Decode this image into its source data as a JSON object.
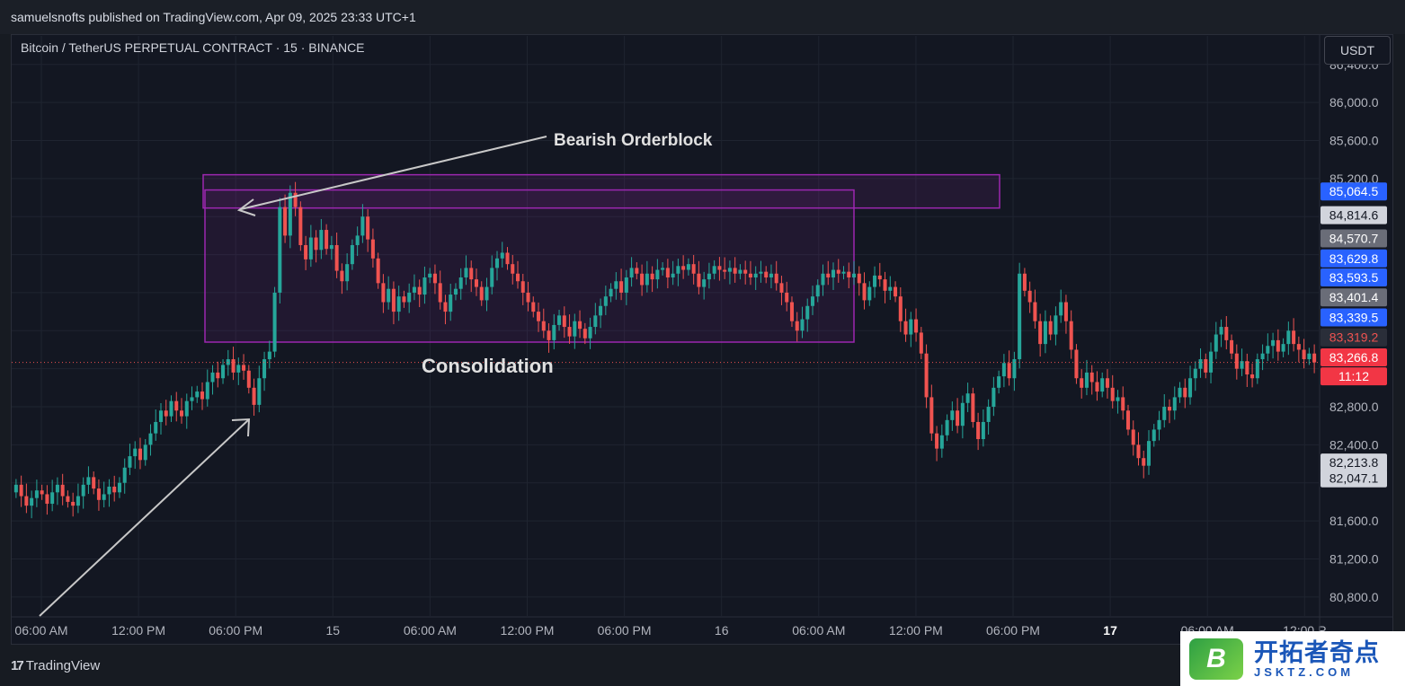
{
  "header": {
    "publisher_line": "samuelsnofts published on TradingView.com, Apr 09, 2025 23:33 UTC+1"
  },
  "symbol": {
    "title": "Bitcoin / TetherUS PERPETUAL CONTRACT · 15 · BINANCE"
  },
  "currency_button": "USDT",
  "footer": {
    "brand": "TradingView",
    "brand_mark": "17"
  },
  "watermark": {
    "cn": "开拓者奇点",
    "en": "JSKTZ.COM",
    "badge": "B"
  },
  "colors": {
    "up": "#26a69a",
    "down": "#ef5350",
    "box": "#9c27b0",
    "bg": "#131722",
    "grid": "#1f2430"
  },
  "chart_data": {
    "type": "candlestick",
    "y_ticks": [
      80800,
      81200,
      81600,
      82000,
      82400,
      82800,
      83200,
      83600,
      84000,
      84400,
      84800,
      85200,
      85600,
      86000,
      86400
    ],
    "y_tick_labels": [
      "80,800.0",
      "81,200.0",
      "81,600.0",
      "",
      "82,400.0",
      "82,800.0",
      "",
      "",
      "",
      "",
      "",
      "85,200.0",
      "85,600.0",
      "86,000.0",
      "86,400.0"
    ],
    "ylim": [
      80600,
      86700
    ],
    "x_labels": [
      {
        "label": "06:00 AM",
        "bold": false
      },
      {
        "label": "12:00 PM",
        "bold": false
      },
      {
        "label": "06:00 PM",
        "bold": false
      },
      {
        "label": "15",
        "bold": false
      },
      {
        "label": "06:00 AM",
        "bold": false
      },
      {
        "label": "12:00 PM",
        "bold": false
      },
      {
        "label": "06:00 PM",
        "bold": false
      },
      {
        "label": "16",
        "bold": false
      },
      {
        "label": "06:00 AM",
        "bold": false
      },
      {
        "label": "12:00 PM",
        "bold": false
      },
      {
        "label": "06:00 PM",
        "bold": false
      },
      {
        "label": "17",
        "bold": true
      },
      {
        "label": "06:00 AM",
        "bold": false
      },
      {
        "label": "12:00 P",
        "bold": false
      }
    ],
    "price_tags": [
      {
        "value": "85,064.5",
        "price": 85064.5,
        "color": "#2962ff",
        "text_color": "#ffffff"
      },
      {
        "value": "84,814.6",
        "price": 84814.6,
        "color": "#d1d4dc",
        "text_color": "#131722"
      },
      {
        "value": "84,570.7",
        "price": 84570.7,
        "color": "#6a6d78",
        "text_color": "#ffffff"
      },
      {
        "value": "83,629.8",
        "price": 84360,
        "color": "#2962ff",
        "text_color": "#ffffff"
      },
      {
        "value": "83,593.5",
        "price": 84160,
        "color": "#2962ff",
        "text_color": "#ffffff"
      },
      {
        "value": "83,401.4",
        "price": 83950,
        "color": "#6a6d78",
        "text_color": "#ffffff"
      },
      {
        "value": "83,339.5",
        "price": 83740,
        "color": "#2962ff",
        "text_color": "#ffffff"
      },
      {
        "value": "83,319.2",
        "price": 83530,
        "color": "#2a2e39",
        "text_color": "#ef5350"
      },
      {
        "value": "83,266.8",
        "price": 83320,
        "color": "#f23645",
        "text_color": "#ffffff"
      },
      {
        "value": "11:12",
        "price": 83120,
        "color": "#f23645",
        "text_color": "#ffffff"
      },
      {
        "value": "82,213.8",
        "price": 82213.8,
        "color": "#d1d4dc",
        "text_color": "#131722"
      },
      {
        "value": "82,047.1",
        "price": 82047.1,
        "color": "#d1d4dc",
        "text_color": "#131722"
      }
    ],
    "current_price": 83266.8,
    "annotations": [
      {
        "text": "Bearish Orderblock"
      },
      {
        "text": "Consolidation"
      }
    ],
    "orderblock": {
      "top": 85240,
      "bottom": 84890
    },
    "consolidation": {
      "top": 85080,
      "bottom": 83480
    },
    "candles": [
      [
        81900,
        81980
      ],
      [
        81980,
        81860
      ],
      [
        81860,
        81760
      ],
      [
        81760,
        81840
      ],
      [
        81840,
        81920
      ],
      [
        81920,
        81880
      ],
      [
        81880,
        81780
      ],
      [
        81780,
        81900
      ],
      [
        81900,
        81980
      ],
      [
        81980,
        81860
      ],
      [
        81860,
        81800
      ],
      [
        81800,
        81760
      ],
      [
        81760,
        81860
      ],
      [
        81860,
        81980
      ],
      [
        81980,
        82060
      ],
      [
        82060,
        81940
      ],
      [
        81940,
        81820
      ],
      [
        81820,
        81880
      ],
      [
        81880,
        81960
      ],
      [
        81960,
        81900
      ],
      [
        81900,
        82000
      ],
      [
        82000,
        82160
      ],
      [
        82160,
        82280
      ],
      [
        82280,
        82360
      ],
      [
        82360,
        82240
      ],
      [
        82240,
        82400
      ],
      [
        82400,
        82520
      ],
      [
        82520,
        82640
      ],
      [
        82640,
        82760
      ],
      [
        82760,
        82700
      ],
      [
        82700,
        82860
      ],
      [
        82860,
        82760
      ],
      [
        82760,
        82700
      ],
      [
        82700,
        82860
      ],
      [
        82860,
        82900
      ],
      [
        82900,
        82960
      ],
      [
        82960,
        82880
      ],
      [
        82880,
        83060
      ],
      [
        83060,
        83160
      ],
      [
        83160,
        83100
      ],
      [
        83100,
        83240
      ],
      [
        83240,
        83300
      ],
      [
        83300,
        83160
      ],
      [
        83160,
        83240
      ],
      [
        83240,
        83180
      ],
      [
        83180,
        83000
      ],
      [
        83000,
        82820
      ],
      [
        82820,
        83100
      ],
      [
        83100,
        83300
      ],
      [
        83300,
        83380
      ],
      [
        83380,
        84000
      ],
      [
        84000,
        84900
      ],
      [
        84900,
        84600
      ],
      [
        84600,
        85050
      ],
      [
        85050,
        84900
      ],
      [
        84900,
        84500
      ],
      [
        84500,
        84350
      ],
      [
        84350,
        84580
      ],
      [
        84580,
        84450
      ],
      [
        84450,
        84660
      ],
      [
        84660,
        84460
      ],
      [
        84460,
        84500
      ],
      [
        84500,
        84230
      ],
      [
        84230,
        84120
      ],
      [
        84120,
        84300
      ],
      [
        84300,
        84500
      ],
      [
        84500,
        84600
      ],
      [
        84600,
        84800
      ],
      [
        84800,
        84560
      ],
      [
        84560,
        84360
      ],
      [
        84360,
        84100
      ],
      [
        84100,
        83900
      ],
      [
        83900,
        84040
      ],
      [
        84040,
        83800
      ],
      [
        83800,
        83960
      ],
      [
        83960,
        83900
      ],
      [
        83900,
        84000
      ],
      [
        84000,
        84060
      ],
      [
        84060,
        83980
      ],
      [
        83980,
        84160
      ],
      [
        84160,
        84200
      ],
      [
        84200,
        84100
      ],
      [
        84100,
        83900
      ],
      [
        83900,
        83800
      ],
      [
        83800,
        83980
      ],
      [
        83980,
        84040
      ],
      [
        84040,
        84160
      ],
      [
        84160,
        84260
      ],
      [
        84260,
        84140
      ],
      [
        84140,
        84060
      ],
      [
        84060,
        83920
      ],
      [
        83920,
        84060
      ],
      [
        84060,
        84260
      ],
      [
        84260,
        84360
      ],
      [
        84360,
        84420
      ],
      [
        84420,
        84300
      ],
      [
        84300,
        84200
      ],
      [
        84200,
        84120
      ],
      [
        84120,
        84000
      ],
      [
        84000,
        83900
      ],
      [
        83900,
        83800
      ],
      [
        83800,
        83700
      ],
      [
        83700,
        83600
      ],
      [
        83600,
        83500
      ],
      [
        83500,
        83660
      ],
      [
        83660,
        83760
      ],
      [
        83760,
        83640
      ],
      [
        83640,
        83540
      ],
      [
        83540,
        83700
      ],
      [
        83700,
        83620
      ],
      [
        83620,
        83520
      ],
      [
        83520,
        83640
      ],
      [
        83640,
        83760
      ],
      [
        83760,
        83860
      ],
      [
        83860,
        83960
      ],
      [
        83960,
        84040
      ],
      [
        84040,
        84120
      ],
      [
        84120,
        84000
      ],
      [
        84000,
        84160
      ],
      [
        84160,
        84260
      ],
      [
        84260,
        84200
      ],
      [
        84200,
        84080
      ],
      [
        84080,
        84200
      ],
      [
        84200,
        84140
      ],
      [
        84140,
        84240
      ],
      [
        84240,
        84260
      ],
      [
        84260,
        84160
      ],
      [
        84160,
        84200
      ],
      [
        84200,
        84280
      ],
      [
        84280,
        84240
      ],
      [
        84240,
        84300
      ],
      [
        84300,
        84200
      ],
      [
        84200,
        84060
      ],
      [
        84060,
        84140
      ],
      [
        84140,
        84200
      ],
      [
        84200,
        84280
      ],
      [
        84280,
        84240
      ],
      [
        84240,
        84220
      ],
      [
        84220,
        84260
      ],
      [
        84260,
        84200
      ],
      [
        84200,
        84240
      ],
      [
        84240,
        84200
      ],
      [
        84200,
        84160
      ],
      [
        84160,
        84200
      ],
      [
        84200,
        84220
      ],
      [
        84220,
        84160
      ],
      [
        84160,
        84200
      ],
      [
        84200,
        84100
      ],
      [
        84100,
        84000
      ],
      [
        84000,
        83900
      ],
      [
        83900,
        83700
      ],
      [
        83700,
        83600
      ],
      [
        83600,
        83720
      ],
      [
        83720,
        83860
      ],
      [
        83860,
        83960
      ],
      [
        83960,
        84080
      ],
      [
        84080,
        84200
      ],
      [
        84200,
        84160
      ],
      [
        84160,
        84240
      ],
      [
        84240,
        84200
      ],
      [
        84200,
        84220
      ],
      [
        84220,
        84160
      ],
      [
        84160,
        84200
      ],
      [
        84200,
        84100
      ],
      [
        84100,
        83920
      ],
      [
        83920,
        84060
      ],
      [
        84060,
        84180
      ],
      [
        84180,
        84140
      ],
      [
        84140,
        84020
      ],
      [
        84020,
        84060
      ],
      [
        84060,
        83960
      ],
      [
        83960,
        83700
      ],
      [
        83700,
        83560
      ],
      [
        83560,
        83720
      ],
      [
        83720,
        83580
      ],
      [
        83580,
        83360
      ],
      [
        83360,
        82900
      ],
      [
        82900,
        82520
      ],
      [
        82520,
        82360
      ],
      [
        82360,
        82500
      ],
      [
        82500,
        82660
      ],
      [
        82660,
        82760
      ],
      [
        82760,
        82600
      ],
      [
        82600,
        82840
      ],
      [
        82840,
        82940
      ],
      [
        82940,
        82640
      ],
      [
        82640,
        82460
      ],
      [
        82460,
        82640
      ],
      [
        82640,
        82800
      ],
      [
        82800,
        83000
      ],
      [
        83000,
        83120
      ],
      [
        83120,
        83260
      ],
      [
        83260,
        83100
      ],
      [
        83100,
        83300
      ],
      [
        83300,
        84200
      ],
      [
        84200,
        84020
      ],
      [
        84020,
        83900
      ],
      [
        83900,
        83700
      ],
      [
        83700,
        83460
      ],
      [
        83460,
        83700
      ],
      [
        83700,
        83560
      ],
      [
        83560,
        83760
      ],
      [
        83760,
        83900
      ],
      [
        83900,
        83700
      ],
      [
        83700,
        83400
      ],
      [
        83400,
        83100
      ],
      [
        83100,
        83000
      ],
      [
        83000,
        83160
      ],
      [
        83160,
        83060
      ],
      [
        83060,
        82960
      ],
      [
        82960,
        83100
      ],
      [
        83100,
        83000
      ],
      [
        83000,
        82860
      ],
      [
        82860,
        82900
      ],
      [
        82900,
        82760
      ],
      [
        82760,
        82560
      ],
      [
        82560,
        82400
      ],
      [
        82400,
        82260
      ],
      [
        82260,
        82180
      ],
      [
        82180,
        82440
      ],
      [
        82440,
        82560
      ],
      [
        82560,
        82660
      ],
      [
        82660,
        82800
      ],
      [
        82800,
        82760
      ],
      [
        82760,
        82900
      ],
      [
        82900,
        83000
      ],
      [
        83000,
        82900
      ],
      [
        82900,
        83100
      ],
      [
        83100,
        83200
      ],
      [
        83200,
        83300
      ],
      [
        83300,
        83160
      ],
      [
        83160,
        83380
      ],
      [
        83380,
        83560
      ],
      [
        83560,
        83640
      ],
      [
        83640,
        83500
      ],
      [
        83500,
        83360
      ],
      [
        83360,
        83200
      ],
      [
        83200,
        83280
      ],
      [
        83280,
        83140
      ],
      [
        83140,
        83100
      ],
      [
        83100,
        83300
      ],
      [
        83300,
        83360
      ],
      [
        83360,
        83440
      ],
      [
        83440,
        83500
      ],
      [
        83500,
        83380
      ],
      [
        83380,
        83460
      ],
      [
        83460,
        83600
      ],
      [
        83600,
        83460
      ],
      [
        83460,
        83400
      ],
      [
        83400,
        83300
      ],
      [
        83300,
        83360
      ],
      [
        83360,
        83267
      ]
    ]
  }
}
